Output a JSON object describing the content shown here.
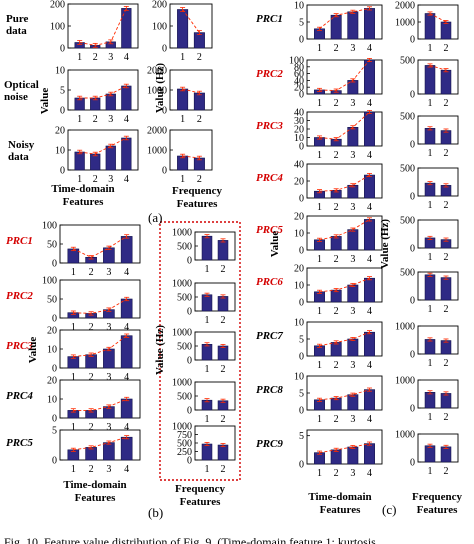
{
  "figure": {
    "panel_a": "(a)",
    "panel_b": "(b)",
    "panel_c": "(c)",
    "time_axis_label": [
      "Time-domain",
      "Features"
    ],
    "freq_axis_label": [
      "Frequency",
      "Features"
    ],
    "value_label": "Value",
    "value_hz_label": "Value (Hz)",
    "caption": "Fig. 10.   Feature value distribution of Fig. 9. (Time-domain feature 1: kurtosis"
  },
  "colors": {
    "bar": "#2f2a85",
    "bar_edge": "#14124a",
    "trend": "#ff2a00",
    "highlight_label": "#d40000",
    "dashed_box": "#d40000"
  },
  "chart_data": [
    {
      "id": "a-pure-time",
      "type": "bar",
      "panel": "a",
      "row_label": "Pure data",
      "categories": [
        "1",
        "2",
        "3",
        "4"
      ],
      "values": [
        25,
        12,
        28,
        180
      ],
      "ylim": [
        0,
        200
      ],
      "yticks": [
        "0",
        "100",
        "200"
      ],
      "trend": true
    },
    {
      "id": "a-pure-freq",
      "type": "bar",
      "panel": "a",
      "categories": [
        "1",
        "2"
      ],
      "values": [
        175,
        70
      ],
      "ylim": [
        0,
        200
      ],
      "yticks": [
        "0",
        "100",
        "200"
      ],
      "trend": true
    },
    {
      "id": "a-optical-time",
      "type": "bar",
      "panel": "a",
      "row_label": "Optical noise",
      "categories": [
        "1",
        "2",
        "3",
        "4"
      ],
      "values": [
        3,
        3,
        4,
        6
      ],
      "ylim": [
        0,
        10
      ],
      "yticks": [
        "0",
        "5",
        "10"
      ],
      "trend": true
    },
    {
      "id": "a-optical-freq",
      "type": "bar",
      "panel": "a",
      "categories": [
        "1",
        "2"
      ],
      "values": [
        1050,
        850
      ],
      "ylim": [
        0,
        2000
      ],
      "yticks": [
        "0",
        "1000",
        "2000"
      ],
      "trend": true
    },
    {
      "id": "a-noisy-time",
      "type": "bar",
      "panel": "a",
      "row_label": "Noisy data",
      "categories": [
        "1",
        "2",
        "3",
        "4"
      ],
      "values": [
        9,
        8,
        12,
        16
      ],
      "ylim": [
        0,
        20
      ],
      "yticks": [
        "0",
        "10",
        "20"
      ],
      "trend": true
    },
    {
      "id": "a-noisy-freq",
      "type": "bar",
      "panel": "a",
      "categories": [
        "1",
        "2"
      ],
      "values": [
        700,
        600
      ],
      "ylim": [
        0,
        2000
      ],
      "yticks": [
        "0",
        "1000",
        "2000"
      ],
      "trend": true
    },
    {
      "id": "b-prc1-time",
      "type": "bar",
      "panel": "b",
      "row_label": "PRC1",
      "highlight": true,
      "categories": [
        "1",
        "2",
        "3",
        "4"
      ],
      "values": [
        37,
        15,
        40,
        70
      ],
      "ylim": [
        0,
        100
      ],
      "yticks": [
        "0",
        "50",
        "100"
      ],
      "trend": true
    },
    {
      "id": "b-prc1-freq",
      "type": "bar",
      "panel": "b",
      "categories": [
        "1",
        "2"
      ],
      "values": [
        850,
        700
      ],
      "ylim": [
        0,
        1000
      ],
      "yticks": [
        "0",
        "500",
        "1000"
      ],
      "trend": false
    },
    {
      "id": "b-prc2-time",
      "type": "bar",
      "panel": "b",
      "row_label": "PRC2",
      "highlight": true,
      "categories": [
        "1",
        "2",
        "3",
        "4"
      ],
      "values": [
        14,
        12,
        22,
        50
      ],
      "ylim": [
        0,
        100
      ],
      "yticks": [
        "0",
        "50",
        "100"
      ],
      "trend": true
    },
    {
      "id": "b-prc2-freq",
      "type": "bar",
      "panel": "b",
      "categories": [
        "1",
        "2"
      ],
      "values": [
        580,
        520
      ],
      "ylim": [
        0,
        1000
      ],
      "yticks": [
        "0",
        "500",
        "1000"
      ],
      "trend": false
    },
    {
      "id": "b-prc3-time",
      "type": "bar",
      "panel": "b",
      "row_label": "PRC3",
      "highlight": true,
      "categories": [
        "1",
        "2",
        "3",
        "4"
      ],
      "values": [
        6,
        7,
        10,
        17
      ],
      "ylim": [
        0,
        20
      ],
      "yticks": [
        "0",
        "10",
        "20"
      ],
      "trend": true
    },
    {
      "id": "b-prc3-freq",
      "type": "bar",
      "panel": "b",
      "categories": [
        "1",
        "2"
      ],
      "values": [
        560,
        500
      ],
      "ylim": [
        0,
        1000
      ],
      "yticks": [
        "0",
        "500",
        "1000"
      ],
      "trend": false
    },
    {
      "id": "b-prc4-time",
      "type": "bar",
      "panel": "b",
      "row_label": "PRC4",
      "categories": [
        "1",
        "2",
        "3",
        "4"
      ],
      "values": [
        4,
        4,
        6,
        10
      ],
      "ylim": [
        0,
        20
      ],
      "yticks": [
        "0",
        "10",
        "20"
      ],
      "trend": true
    },
    {
      "id": "b-prc4-freq",
      "type": "bar",
      "panel": "b",
      "categories": [
        "1",
        "2"
      ],
      "values": [
        350,
        330
      ],
      "ylim": [
        0,
        1000
      ],
      "yticks": [
        "0",
        "500",
        "1000"
      ],
      "trend": false
    },
    {
      "id": "b-prc5-time",
      "type": "bar",
      "panel": "b",
      "row_label": "PRC5",
      "categories": [
        "1",
        "2",
        "3",
        "4"
      ],
      "values": [
        1.7,
        2.1,
        2.9,
        3.8
      ],
      "ylim": [
        0,
        5
      ],
      "yticks": [
        "0",
        "5"
      ],
      "trend": true
    },
    {
      "id": "b-prc5-freq",
      "type": "bar",
      "panel": "b",
      "categories": [
        "1",
        "2"
      ],
      "values": [
        470,
        440
      ],
      "ylim": [
        0,
        1000
      ],
      "yticks": [
        "0",
        "250",
        "500",
        "750",
        "1000"
      ],
      "trend": false
    },
    {
      "id": "c-prc1-time",
      "type": "bar",
      "panel": "c",
      "row_label": "PRC1",
      "categories": [
        "1",
        "2",
        "3",
        "4"
      ],
      "values": [
        3,
        7,
        8,
        9
      ],
      "ylim": [
        0,
        10
      ],
      "yticks": [
        "0",
        "5",
        "10"
      ],
      "trend": true
    },
    {
      "id": "c-prc1-freq",
      "type": "bar",
      "panel": "c",
      "categories": [
        "1",
        "2"
      ],
      "values": [
        1500,
        1000
      ],
      "ylim": [
        0,
        2000
      ],
      "yticks": [
        "0",
        "1000",
        "2000"
      ],
      "trend": true
    },
    {
      "id": "c-prc2-time",
      "type": "bar",
      "panel": "c",
      "row_label": "PRC2",
      "highlight": true,
      "categories": [
        "1",
        "2",
        "3",
        "4"
      ],
      "values": [
        12,
        10,
        40,
        100
      ],
      "ylim": [
        0,
        100
      ],
      "yticks": [
        "0",
        "20",
        "40",
        "60",
        "80",
        "100"
      ],
      "trend": true
    },
    {
      "id": "c-prc2-freq",
      "type": "bar",
      "panel": "c",
      "categories": [
        "1",
        "2"
      ],
      "values": [
        420,
        350
      ],
      "ylim": [
        0,
        500
      ],
      "yticks": [
        "0",
        "500"
      ],
      "trend": true
    },
    {
      "id": "c-prc3-time",
      "type": "bar",
      "panel": "c",
      "row_label": "PRC3",
      "highlight": true,
      "categories": [
        "1",
        "2",
        "3",
        "4"
      ],
      "values": [
        10,
        8,
        22,
        40
      ],
      "ylim": [
        0,
        40
      ],
      "yticks": [
        "0",
        "10",
        "20",
        "30",
        "40"
      ],
      "trend": true
    },
    {
      "id": "c-prc3-freq",
      "type": "bar",
      "panel": "c",
      "categories": [
        "1",
        "2"
      ],
      "values": [
        280,
        240
      ],
      "ylim": [
        0,
        500
      ],
      "yticks": [
        "0",
        "500"
      ],
      "trend": false
    },
    {
      "id": "c-prc4-time",
      "type": "bar",
      "panel": "c",
      "row_label": "PRC4",
      "highlight": true,
      "categories": [
        "1",
        "2",
        "3",
        "4"
      ],
      "values": [
        8,
        9,
        15,
        27
      ],
      "ylim": [
        0,
        40
      ],
      "yticks": [
        "0",
        "20",
        "40"
      ],
      "trend": true
    },
    {
      "id": "c-prc4-freq",
      "type": "bar",
      "panel": "c",
      "categories": [
        "1",
        "2"
      ],
      "values": [
        230,
        190
      ],
      "ylim": [
        0,
        500
      ],
      "yticks": [
        "0",
        "500"
      ],
      "trend": false
    },
    {
      "id": "c-prc5-time",
      "type": "bar",
      "panel": "c",
      "row_label": "PRC5",
      "highlight": true,
      "categories": [
        "1",
        "2",
        "3",
        "4"
      ],
      "values": [
        6,
        8,
        12,
        18
      ],
      "ylim": [
        0,
        20
      ],
      "yticks": [
        "0",
        "10",
        "20"
      ],
      "trend": true
    },
    {
      "id": "c-prc5-freq",
      "type": "bar",
      "panel": "c",
      "categories": [
        "1",
        "2"
      ],
      "values": [
        180,
        150
      ],
      "ylim": [
        0,
        500
      ],
      "yticks": [
        "0",
        "500"
      ],
      "trend": false
    },
    {
      "id": "c-prc6-time",
      "type": "bar",
      "panel": "c",
      "row_label": "PRC6",
      "highlight": true,
      "categories": [
        "1",
        "2",
        "3",
        "4"
      ],
      "values": [
        6,
        7,
        10,
        14
      ],
      "ylim": [
        0,
        20
      ],
      "yticks": [
        "0",
        "10",
        "20"
      ],
      "trend": true
    },
    {
      "id": "c-prc6-freq",
      "type": "bar",
      "panel": "c",
      "categories": [
        "1",
        "2"
      ],
      "values": [
        450,
        400
      ],
      "ylim": [
        0,
        500
      ],
      "yticks": [
        "0",
        "500"
      ],
      "trend": false
    },
    {
      "id": "c-prc7-time",
      "type": "bar",
      "panel": "c",
      "row_label": "PRC7",
      "categories": [
        "1",
        "2",
        "3",
        "4"
      ],
      "values": [
        3,
        4,
        5,
        7
      ],
      "ylim": [
        0,
        10
      ],
      "yticks": [
        "0",
        "5",
        "10"
      ],
      "trend": true
    },
    {
      "id": "c-prc7-freq",
      "type": "bar",
      "panel": "c",
      "categories": [
        "1",
        "2"
      ],
      "values": [
        520,
        480
      ],
      "ylim": [
        0,
        1000
      ],
      "yticks": [
        "0",
        "1000"
      ],
      "trend": false
    },
    {
      "id": "c-prc8-time",
      "type": "bar",
      "panel": "c",
      "row_label": "PRC8",
      "categories": [
        "1",
        "2",
        "3",
        "4"
      ],
      "values": [
        3,
        3.5,
        4.5,
        6
      ],
      "ylim": [
        0,
        10
      ],
      "yticks": [
        "0",
        "5",
        "10"
      ],
      "trend": true
    },
    {
      "id": "c-prc8-freq",
      "type": "bar",
      "panel": "c",
      "categories": [
        "1",
        "2"
      ],
      "values": [
        560,
        520
      ],
      "ylim": [
        0,
        1000
      ],
      "yticks": [
        "0",
        "1000"
      ],
      "trend": false
    },
    {
      "id": "c-prc9-time",
      "type": "bar",
      "panel": "c",
      "row_label": "PRC9",
      "categories": [
        "1",
        "2",
        "3",
        "4"
      ],
      "values": [
        2,
        2.5,
        3,
        3.6
      ],
      "ylim": [
        0,
        6
      ],
      "yticks": [
        "0",
        "5"
      ],
      "trend": true
    },
    {
      "id": "c-prc9-freq",
      "type": "bar",
      "panel": "c",
      "categories": [
        "1",
        "2"
      ],
      "values": [
        580,
        540
      ],
      "ylim": [
        0,
        1000
      ],
      "yticks": [
        "0",
        "1000"
      ],
      "trend": false
    }
  ]
}
